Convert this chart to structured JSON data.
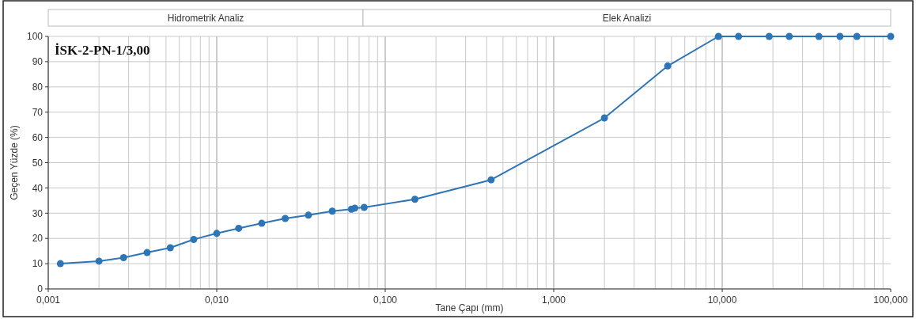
{
  "chart_data": {
    "type": "line",
    "title": "İSK-2-PN-1/3,00",
    "xlabel": "Tane Çapı (mm)",
    "ylabel": "Geçen Yüzde (%)",
    "x": [
      0.00118,
      0.002,
      0.0028,
      0.00386,
      0.0053,
      0.0073,
      0.01,
      0.0135,
      0.0185,
      0.0255,
      0.035,
      0.0485,
      0.063,
      0.066,
      0.075,
      0.15,
      0.425,
      2.0,
      4.75,
      9.5,
      12.5,
      19,
      25,
      37.5,
      50,
      63,
      100
    ],
    "series": [
      {
        "color": "#2e75b6",
        "values": [
          10,
          11,
          12.4,
          14.4,
          16.3,
          19.6,
          22,
          24,
          26,
          27.9,
          29.2,
          30.8,
          31.6,
          32,
          32.3,
          35.5,
          43.2,
          67.7,
          88.3,
          100,
          100,
          100,
          100,
          100,
          100,
          100,
          100
        ]
      }
    ],
    "log": "x",
    "xlim": [
      0.001,
      100
    ],
    "ylim": [
      0,
      100
    ],
    "xticks": [
      {
        "value": 0.001,
        "label": "0,001"
      },
      {
        "value": 0.01,
        "label": "0,010"
      },
      {
        "value": 0.1,
        "label": "0,100"
      },
      {
        "value": 1,
        "label": "1,000"
      },
      {
        "value": 10,
        "label": "10,000"
      },
      {
        "value": 100,
        "label": "100,000"
      }
    ],
    "yticks": [
      0,
      10,
      20,
      30,
      40,
      50,
      60,
      70,
      80,
      90,
      100
    ],
    "annotations": [
      "Hidrometrik Analiz",
      "Elek Analizi"
    ],
    "grid": true,
    "marker": "circle",
    "line_style": "solid"
  }
}
